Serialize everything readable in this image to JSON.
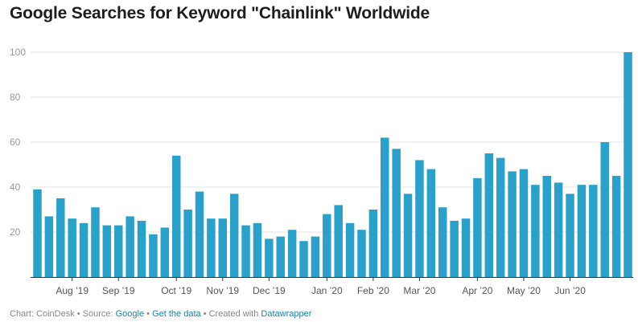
{
  "chart_data": {
    "type": "bar",
    "title": "Google Searches for Keyword \"Chainlink\" Worldwide",
    "xlabel": "",
    "ylabel": "",
    "ylim": [
      0,
      100
    ],
    "yticks": [
      20,
      40,
      60,
      80,
      100
    ],
    "grid": true,
    "bar_color": "#2ba1c9",
    "x_tick_labels": [
      {
        "label": "Aug ’19",
        "at_bar": 3
      },
      {
        "label": "Sep ’19",
        "at_bar": 7
      },
      {
        "label": "Oct ’19",
        "at_bar": 12
      },
      {
        "label": "Nov ’19",
        "at_bar": 16
      },
      {
        "label": "Dec ’19",
        "at_bar": 20
      },
      {
        "label": "Jan ’20",
        "at_bar": 25
      },
      {
        "label": "Feb ’20",
        "at_bar": 29
      },
      {
        "label": "Mar ’20",
        "at_bar": 33
      },
      {
        "label": "Apr ’20",
        "at_bar": 38
      },
      {
        "label": "May ’20",
        "at_bar": 42
      },
      {
        "label": "Jun ’20",
        "at_bar": 46
      }
    ],
    "values": [
      39,
      27,
      35,
      26,
      24,
      31,
      23,
      23,
      27,
      25,
      19,
      22,
      54,
      30,
      38,
      26,
      26,
      37,
      23,
      24,
      17,
      18,
      21,
      16,
      18,
      28,
      32,
      24,
      21,
      30,
      62,
      57,
      37,
      52,
      48,
      31,
      25,
      26,
      44,
      55,
      53,
      47,
      48,
      41,
      45,
      42,
      37,
      41,
      41,
      60,
      45,
      100
    ]
  },
  "footer": {
    "prefix": "Chart: CoinDesk • Source: ",
    "source_link": "Google",
    "sep1": " • ",
    "data_link": "Get the data",
    "sep2": " • Created with ",
    "tool_link": "Datawrapper"
  }
}
